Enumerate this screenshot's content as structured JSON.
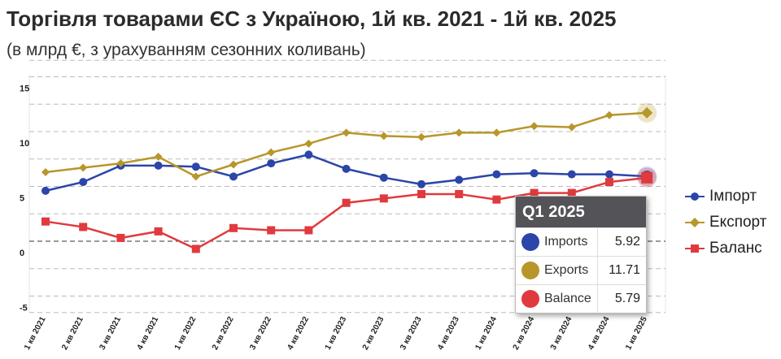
{
  "header": {
    "title": "Торгівля товарами ЄС з Україною, 1й кв. 2021 - 1й кв. 2025",
    "subtitle": "(в млрд €, з урахуванням сезонних коливань)"
  },
  "colors": {
    "imports": "#2b45a8",
    "exports": "#b8962a",
    "balance": "#e03a3e",
    "grid": "#bbbbbb"
  },
  "legend": [
    {
      "label": "Імпорт",
      "color": "#2b45a8",
      "marker": "circle"
    },
    {
      "label": "Експорт",
      "color": "#b8962a",
      "marker": "diamond"
    },
    {
      "label": "Баланс",
      "color": "#e03a3e",
      "marker": "square"
    }
  ],
  "tooltip": {
    "title": "Q1 2025",
    "rows": [
      {
        "label": "Imports",
        "value": "5.92",
        "color": "#2b45a8"
      },
      {
        "label": "Exports",
        "value": "11.71",
        "color": "#b8962a"
      },
      {
        "label": "Balance",
        "value": "5.79",
        "color": "#e03a3e"
      }
    ]
  },
  "chart_data": {
    "type": "line",
    "title": "Торгівля товарами ЄС з Україною, 1й кв. 2021 - 1й кв. 2025",
    "subtitle": "(в млрд €, з урахуванням сезонних коливань)",
    "categories": [
      "1 кв 2021",
      "2 кв 2021",
      "3 кв 2021",
      "4 кв 2021",
      "1 кв 2022",
      "2 кв 2022",
      "3 кв 2022",
      "4 кв 2022",
      "1 кв 2023",
      "2 кв 2023",
      "3 кв 2023",
      "4 кв 2023",
      "1 кв 2024",
      "2 кв 2024",
      "3 кв 2024",
      "4 кв 2024",
      "1 кв 2025"
    ],
    "yticks": [
      "15",
      "10",
      "5",
      "0",
      "-5"
    ],
    "ylim": [
      -5,
      15
    ],
    "grid": true,
    "legend_position": "right",
    "series": [
      {
        "name": "Імпорт",
        "key": "imports",
        "marker": "circle",
        "values": [
          4.6,
          5.4,
          6.9,
          6.9,
          6.8,
          5.9,
          7.1,
          7.9,
          6.6,
          5.8,
          5.2,
          5.6,
          6.1,
          6.2,
          6.1,
          6.1,
          5.92
        ]
      },
      {
        "name": "Експорт",
        "key": "exports",
        "marker": "diamond",
        "values": [
          6.3,
          6.7,
          7.1,
          7.7,
          5.9,
          7.0,
          8.1,
          8.9,
          9.9,
          9.6,
          9.5,
          9.9,
          9.9,
          10.5,
          10.4,
          11.5,
          11.71
        ]
      },
      {
        "name": "Баланс",
        "key": "balance",
        "marker": "square",
        "values": [
          1.8,
          1.3,
          0.3,
          0.9,
          -0.7,
          1.2,
          1.0,
          1.0,
          3.5,
          3.9,
          4.3,
          4.3,
          3.8,
          4.4,
          4.4,
          5.4,
          5.79
        ]
      }
    ]
  }
}
